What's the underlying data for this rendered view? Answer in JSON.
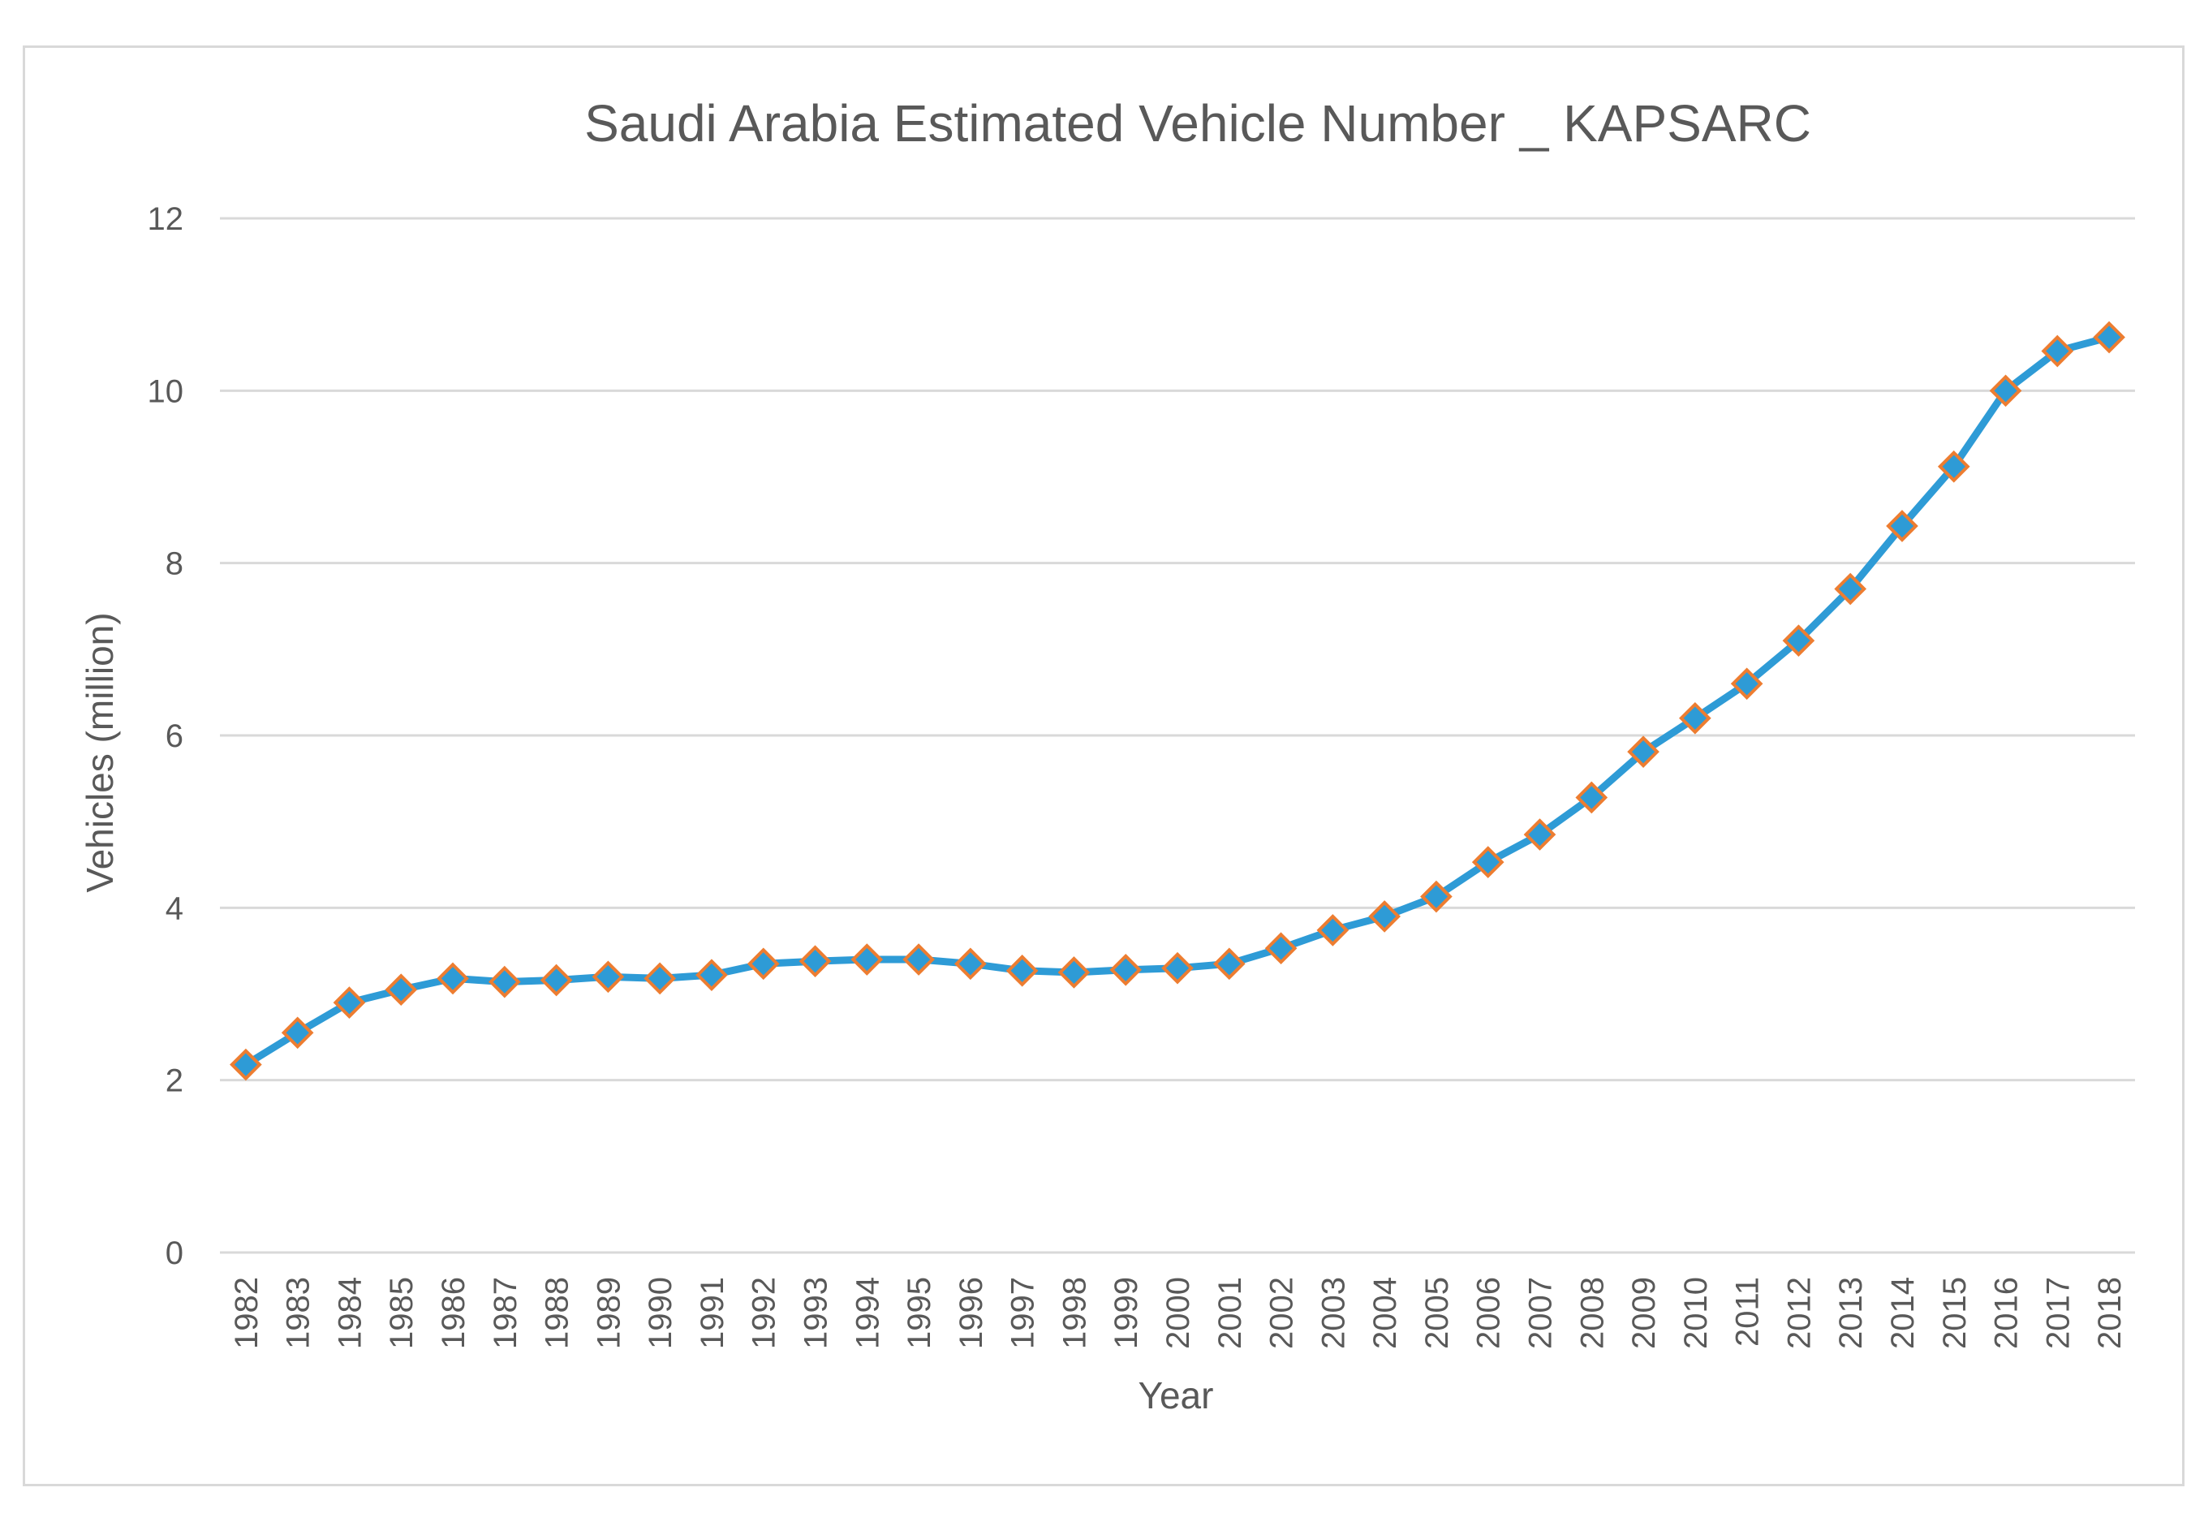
{
  "chart_data": {
    "type": "line",
    "title": "Saudi Arabia Estimated Vehicle Number _ KAPSARC",
    "xlabel": "Year",
    "ylabel": "Vehicles (million)",
    "ylim": [
      0,
      12
    ],
    "yticks": [
      0,
      2,
      4,
      6,
      8,
      10,
      12
    ],
    "grid": true,
    "legend": "none",
    "categories": [
      "1982",
      "1983",
      "1984",
      "1985",
      "1986",
      "1987",
      "1988",
      "1989",
      "1990",
      "1991",
      "1992",
      "1993",
      "1994",
      "1995",
      "1996",
      "1997",
      "1998",
      "1999",
      "2000",
      "2001",
      "2002",
      "2003",
      "2004",
      "2005",
      "2006",
      "2007",
      "2008",
      "2009",
      "2010",
      "2011",
      "2012",
      "2013",
      "2014",
      "2015",
      "2016",
      "2017",
      "2018"
    ],
    "series": [
      {
        "name": "Vehicles (million)",
        "color": "#2e9bd6",
        "marker_fill": "#2e9bd6",
        "marker_edge": "#ed7d31",
        "marker": "diamond",
        "values": [
          2.18,
          2.55,
          2.9,
          3.05,
          3.18,
          3.14,
          3.16,
          3.2,
          3.18,
          3.22,
          3.35,
          3.38,
          3.4,
          3.4,
          3.35,
          3.27,
          3.25,
          3.28,
          3.3,
          3.35,
          3.53,
          3.74,
          3.9,
          4.13,
          4.53,
          4.85,
          5.28,
          5.81,
          6.2,
          6.6,
          7.1,
          7.7,
          8.43,
          9.12,
          10.0,
          10.46,
          10.62
        ]
      }
    ]
  }
}
